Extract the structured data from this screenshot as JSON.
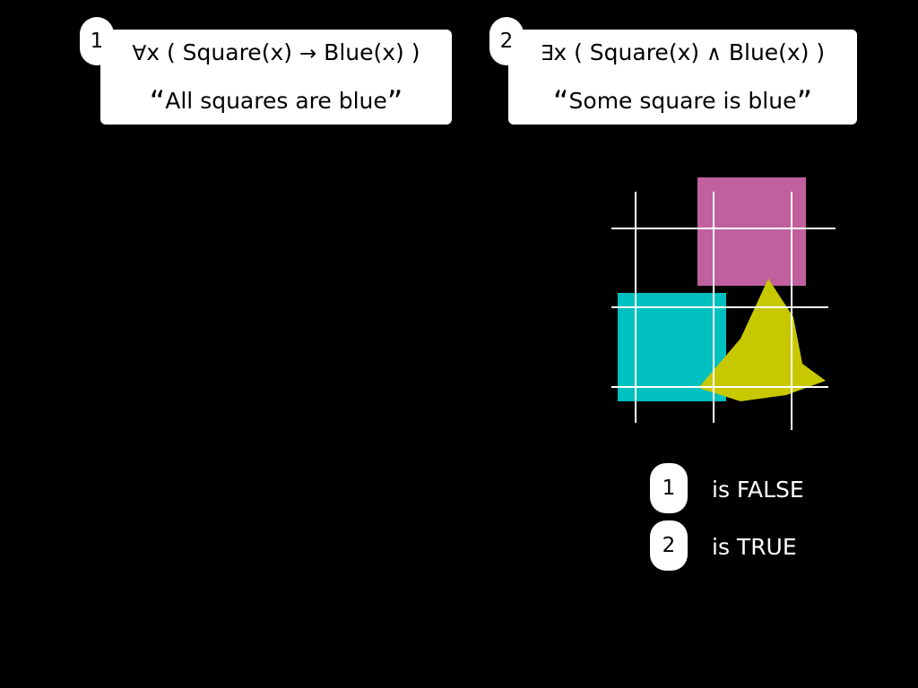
{
  "formulas": [
    {
      "number": "1",
      "formula_prefix": "∀",
      "formula_body": "x ( Square(x) ",
      "connective": "→",
      "formula_tail": " Blue(x) )",
      "open_quote": "“",
      "gloss": "All squares are blue",
      "close_quote": "”"
    },
    {
      "number": "2",
      "formula_prefix": "∃",
      "formula_body": "x ( Square(x) ",
      "connective": "∧",
      "formula_tail": " Blue(x) )",
      "open_quote": "“",
      "gloss": "Some square is blue",
      "close_quote": "”"
    }
  ],
  "results": [
    {
      "number": "1",
      "text": "is FALSE"
    },
    {
      "number": "2",
      "text": "is TRUE"
    }
  ],
  "world": {
    "objects": [
      {
        "shape": "square",
        "color": "#c0609f"
      },
      {
        "shape": "square",
        "color": "#00c0c0"
      },
      {
        "shape": "triangle",
        "color": "#c8c800"
      }
    ],
    "grid_color": "#ffffff"
  }
}
